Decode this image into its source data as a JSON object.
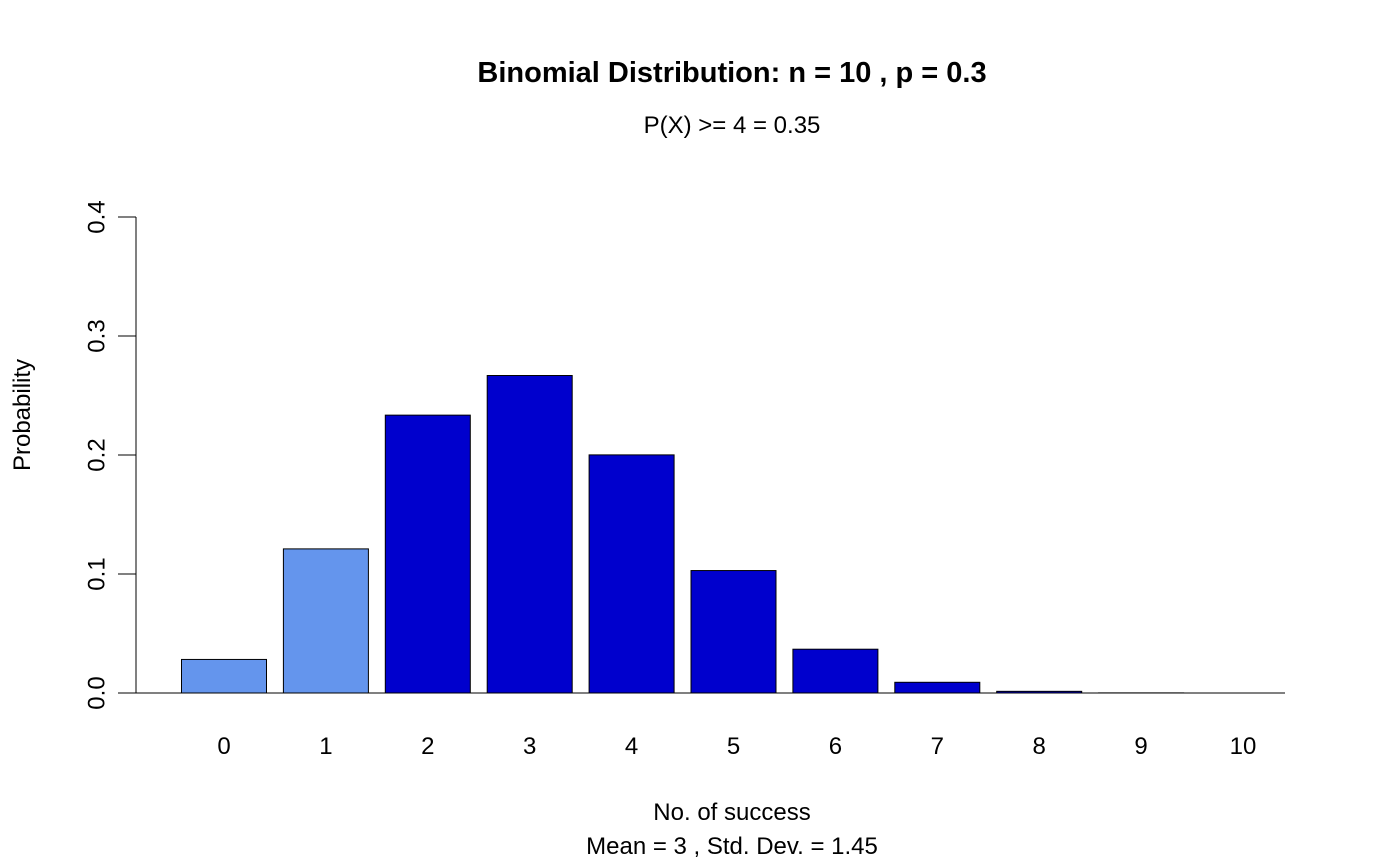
{
  "chart_data": {
    "type": "bar",
    "title": "Binomial Distribution: n = 10 , p = 0.3",
    "subtitle": "P(X) >= 4 = 0.35",
    "xlabel": "No. of success",
    "xlabel_note": "Mean = 3 , Std. Dev. = 1.45",
    "ylabel": "Probability",
    "categories": [
      "0",
      "1",
      "2",
      "3",
      "4",
      "5",
      "6",
      "7",
      "8",
      "9",
      "10"
    ],
    "values": [
      0.0282,
      0.1211,
      0.2335,
      0.2668,
      0.2001,
      0.1029,
      0.0368,
      0.009,
      0.0014,
      0.0001,
      0.0
    ],
    "ylim": [
      0,
      0.4
    ],
    "yticks": [
      "0.0",
      "0.1",
      "0.2",
      "0.3",
      "0.4"
    ],
    "ytick_values": [
      0,
      0.1,
      0.2,
      0.3,
      0.4
    ],
    "grid": false,
    "colors": {
      "light": "#6495ED",
      "dark": "#0000CD",
      "border": "#000000"
    },
    "bar_color_groups": [
      "light",
      "light",
      "dark",
      "dark",
      "dark",
      "dark",
      "dark",
      "dark",
      "dark",
      "dark",
      "dark"
    ]
  }
}
